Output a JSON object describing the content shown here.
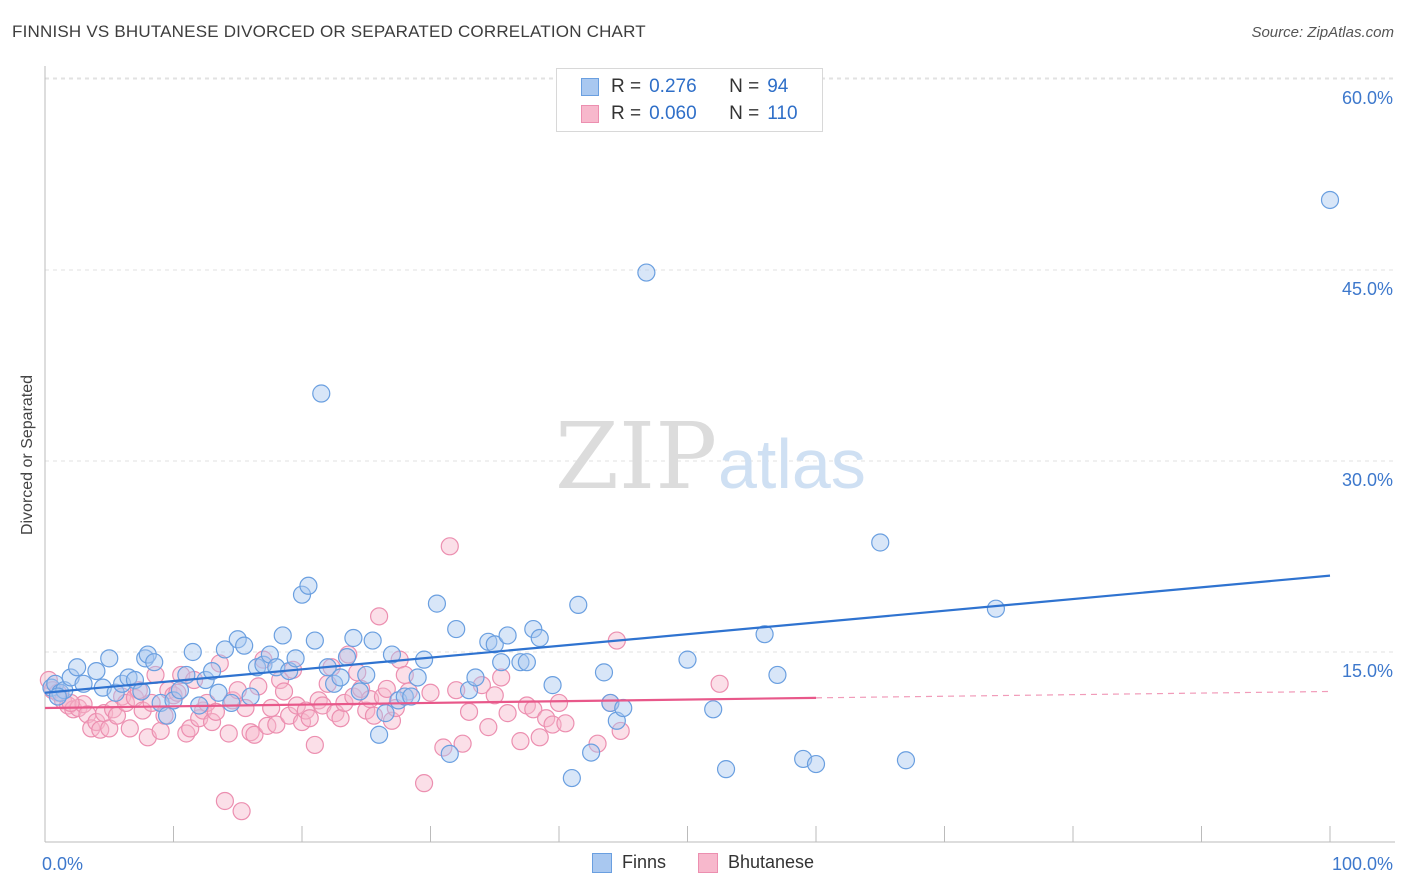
{
  "header": {
    "title": "FINNISH VS BHUTANESE DIVORCED OR SEPARATED CORRELATION CHART",
    "source": "Source: ZipAtlas.com"
  },
  "watermark": {
    "zip": "ZIP",
    "atlas": "atlas"
  },
  "legend_top": {
    "r_label": "R =",
    "n_label": "N =",
    "finns": {
      "r": "0.276",
      "n": "94"
    },
    "bhutanese": {
      "r": "0.060",
      "n": "110"
    }
  },
  "legend_bottom": {
    "finns": "Finns",
    "bhutanese": "Bhutanese"
  },
  "colors": {
    "finns_fill": "#a9c8f0",
    "finns_stroke": "#6a9fe0",
    "finns_line": "#2f73d0",
    "bhutanese_fill": "#f7b8cc",
    "bhutanese_stroke": "#ec8fb0",
    "bhutanese_line": "#e8588a",
    "tick_label": "#3d78cc"
  },
  "chart_data": {
    "type": "scatter",
    "title": "FINNISH VS BHUTANESE DIVORCED OR SEPARATED CORRELATION CHART",
    "xlabel": "",
    "ylabel": "Divorced or Separated",
    "xlim": [
      0,
      100
    ],
    "ylim": [
      0,
      64
    ],
    "x_tick_labels": [
      "0.0%",
      "100.0%"
    ],
    "y_ticks": [
      15,
      30,
      45,
      60
    ],
    "y_tick_labels": [
      "15.0%",
      "30.0%",
      "45.0%",
      "60.0%"
    ],
    "grid": "horizontal dashed",
    "legend": "top-center",
    "series": [
      {
        "name": "Finns",
        "r": 0.276,
        "n": 94,
        "trend": {
          "x": [
            0,
            100
          ],
          "y": [
            11.8,
            21.0
          ],
          "style": "solid"
        },
        "points": [
          [
            0.5,
            12.2
          ],
          [
            0.8,
            12.5
          ],
          [
            1.2,
            11.8
          ],
          [
            1.5,
            12.0
          ],
          [
            2.0,
            13.0
          ],
          [
            2.5,
            13.8
          ],
          [
            3.0,
            12.5
          ],
          [
            4.0,
            13.5
          ],
          [
            4.5,
            12.2
          ],
          [
            5.0,
            14.5
          ],
          [
            5.5,
            11.8
          ],
          [
            6.0,
            12.5
          ],
          [
            6.5,
            13.0
          ],
          [
            7.0,
            12.8
          ],
          [
            7.5,
            11.9
          ],
          [
            7.8,
            14.5
          ],
          [
            8.0,
            14.8
          ],
          [
            8.5,
            14.2
          ],
          [
            9.0,
            11.0
          ],
          [
            9.5,
            10.0
          ],
          [
            10.0,
            11.2
          ],
          [
            10.5,
            12.0
          ],
          [
            11.0,
            13.2
          ],
          [
            11.5,
            15.0
          ],
          [
            12.0,
            10.8
          ],
          [
            12.5,
            12.8
          ],
          [
            13.0,
            13.5
          ],
          [
            13.5,
            11.8
          ],
          [
            14.0,
            15.2
          ],
          [
            14.5,
            11.0
          ],
          [
            15.0,
            16.0
          ],
          [
            15.5,
            15.5
          ],
          [
            16.0,
            11.5
          ],
          [
            16.5,
            13.8
          ],
          [
            17.0,
            14.0
          ],
          [
            17.5,
            14.8
          ],
          [
            18.0,
            13.8
          ],
          [
            18.5,
            16.3
          ],
          [
            19.0,
            13.5
          ],
          [
            19.5,
            14.5
          ],
          [
            20.0,
            19.5
          ],
          [
            20.5,
            20.2
          ],
          [
            21.0,
            15.9
          ],
          [
            21.5,
            35.3
          ],
          [
            22.0,
            13.8
          ],
          [
            22.5,
            12.5
          ],
          [
            23.0,
            13.0
          ],
          [
            23.5,
            14.6
          ],
          [
            24.0,
            16.1
          ],
          [
            24.5,
            11.9
          ],
          [
            25.0,
            13.2
          ],
          [
            25.5,
            15.9
          ],
          [
            26.0,
            8.5
          ],
          [
            26.5,
            10.2
          ],
          [
            27.0,
            14.8
          ],
          [
            27.5,
            11.2
          ],
          [
            28.0,
            11.5
          ],
          [
            28.5,
            11.5
          ],
          [
            29.0,
            13.0
          ],
          [
            29.5,
            14.4
          ],
          [
            30.5,
            18.8
          ],
          [
            31.5,
            7.0
          ],
          [
            32.0,
            16.8
          ],
          [
            33.0,
            12.0
          ],
          [
            33.5,
            13.0
          ],
          [
            34.5,
            15.8
          ],
          [
            35.0,
            15.6
          ],
          [
            35.5,
            14.2
          ],
          [
            36.0,
            16.3
          ],
          [
            37.0,
            14.2
          ],
          [
            37.5,
            14.2
          ],
          [
            38.0,
            16.8
          ],
          [
            38.5,
            16.1
          ],
          [
            39.5,
            12.4
          ],
          [
            41.0,
            5.1
          ],
          [
            41.5,
            18.7
          ],
          [
            42.5,
            7.1
          ],
          [
            43.5,
            13.4
          ],
          [
            44.0,
            11.0
          ],
          [
            44.5,
            9.6
          ],
          [
            45.0,
            10.6
          ],
          [
            46.8,
            44.8
          ],
          [
            50.0,
            14.4
          ],
          [
            52.0,
            10.5
          ],
          [
            53.0,
            5.8
          ],
          [
            56.0,
            16.4
          ],
          [
            57.0,
            13.2
          ],
          [
            59.0,
            6.6
          ],
          [
            60.0,
            6.2
          ],
          [
            65.0,
            23.6
          ],
          [
            67.0,
            6.5
          ],
          [
            74.0,
            18.4
          ],
          [
            100.0,
            50.5
          ],
          [
            1.0,
            11.5
          ]
        ]
      },
      {
        "name": "Bhutanese",
        "r": 0.06,
        "n": 110,
        "trend": {
          "x": [
            0,
            60
          ],
          "y": [
            10.6,
            11.4
          ],
          "style": "solid"
        },
        "trend_extension": {
          "x": [
            60,
            100
          ],
          "y": [
            11.4,
            11.9
          ],
          "style": "dashed"
        },
        "points": [
          [
            0.3,
            12.8
          ],
          [
            0.6,
            12.0
          ],
          [
            1.0,
            11.8
          ],
          [
            1.4,
            11.2
          ],
          [
            1.8,
            10.8
          ],
          [
            2.2,
            10.5
          ],
          [
            2.6,
            10.6
          ],
          [
            3.0,
            10.9
          ],
          [
            3.3,
            10.1
          ],
          [
            3.6,
            9.0
          ],
          [
            4.0,
            9.5
          ],
          [
            4.3,
            8.9
          ],
          [
            4.6,
            10.2
          ],
          [
            5.0,
            9.0
          ],
          [
            5.3,
            10.5
          ],
          [
            5.6,
            10.0
          ],
          [
            6.0,
            11.5
          ],
          [
            6.3,
            11.0
          ],
          [
            6.6,
            9.0
          ],
          [
            7.0,
            11.4
          ],
          [
            7.3,
            12.0
          ],
          [
            7.6,
            10.4
          ],
          [
            8.0,
            8.3
          ],
          [
            8.3,
            11.0
          ],
          [
            8.6,
            13.2
          ],
          [
            9.0,
            8.8
          ],
          [
            9.3,
            10.0
          ],
          [
            9.6,
            12.0
          ],
          [
            10.0,
            11.6
          ],
          [
            10.3,
            11.8
          ],
          [
            10.6,
            13.2
          ],
          [
            11.0,
            8.6
          ],
          [
            11.3,
            9.0
          ],
          [
            11.6,
            12.8
          ],
          [
            12.0,
            9.8
          ],
          [
            12.3,
            10.4
          ],
          [
            12.6,
            11.0
          ],
          [
            13.0,
            9.5
          ],
          [
            13.3,
            10.3
          ],
          [
            13.6,
            14.1
          ],
          [
            14.0,
            3.3
          ],
          [
            14.3,
            8.6
          ],
          [
            14.6,
            11.2
          ],
          [
            15.0,
            12.0
          ],
          [
            15.3,
            2.5
          ],
          [
            15.6,
            10.6
          ],
          [
            16.0,
            8.7
          ],
          [
            16.3,
            8.5
          ],
          [
            16.6,
            12.3
          ],
          [
            17.0,
            14.4
          ],
          [
            17.3,
            9.2
          ],
          [
            17.6,
            10.6
          ],
          [
            18.0,
            9.3
          ],
          [
            18.3,
            12.8
          ],
          [
            18.6,
            11.9
          ],
          [
            19.0,
            10.0
          ],
          [
            19.3,
            13.6
          ],
          [
            19.6,
            10.8
          ],
          [
            20.0,
            9.5
          ],
          [
            20.3,
            10.4
          ],
          [
            20.6,
            9.8
          ],
          [
            21.0,
            7.7
          ],
          [
            21.3,
            11.2
          ],
          [
            21.6,
            10.8
          ],
          [
            22.0,
            12.5
          ],
          [
            22.3,
            13.8
          ],
          [
            22.6,
            10.2
          ],
          [
            23.0,
            9.8
          ],
          [
            23.3,
            11.0
          ],
          [
            23.6,
            14.8
          ],
          [
            24.0,
            11.5
          ],
          [
            24.3,
            13.4
          ],
          [
            24.6,
            12.1
          ],
          [
            25.0,
            10.4
          ],
          [
            25.3,
            11.3
          ],
          [
            25.6,
            10.0
          ],
          [
            26.0,
            17.8
          ],
          [
            26.3,
            11.5
          ],
          [
            26.6,
            12.1
          ],
          [
            27.0,
            9.6
          ],
          [
            27.3,
            10.6
          ],
          [
            27.6,
            14.4
          ],
          [
            28.0,
            13.2
          ],
          [
            28.3,
            11.9
          ],
          [
            29.5,
            4.7
          ],
          [
            30.0,
            11.8
          ],
          [
            31.0,
            7.5
          ],
          [
            31.5,
            23.3
          ],
          [
            32.0,
            12.0
          ],
          [
            32.5,
            7.8
          ],
          [
            33.0,
            10.3
          ],
          [
            34.0,
            12.4
          ],
          [
            34.5,
            9.1
          ],
          [
            35.0,
            11.6
          ],
          [
            35.5,
            13.0
          ],
          [
            36.0,
            10.2
          ],
          [
            37.0,
            8.0
          ],
          [
            37.5,
            10.8
          ],
          [
            38.0,
            10.5
          ],
          [
            38.5,
            8.3
          ],
          [
            39.0,
            9.8
          ],
          [
            39.5,
            9.3
          ],
          [
            40.0,
            11.0
          ],
          [
            40.5,
            9.4
          ],
          [
            43.0,
            7.8
          ],
          [
            44.0,
            11.0
          ],
          [
            44.5,
            15.9
          ],
          [
            44.8,
            8.8
          ],
          [
            52.5,
            12.5
          ],
          [
            2.0,
            11.0
          ]
        ]
      }
    ]
  }
}
